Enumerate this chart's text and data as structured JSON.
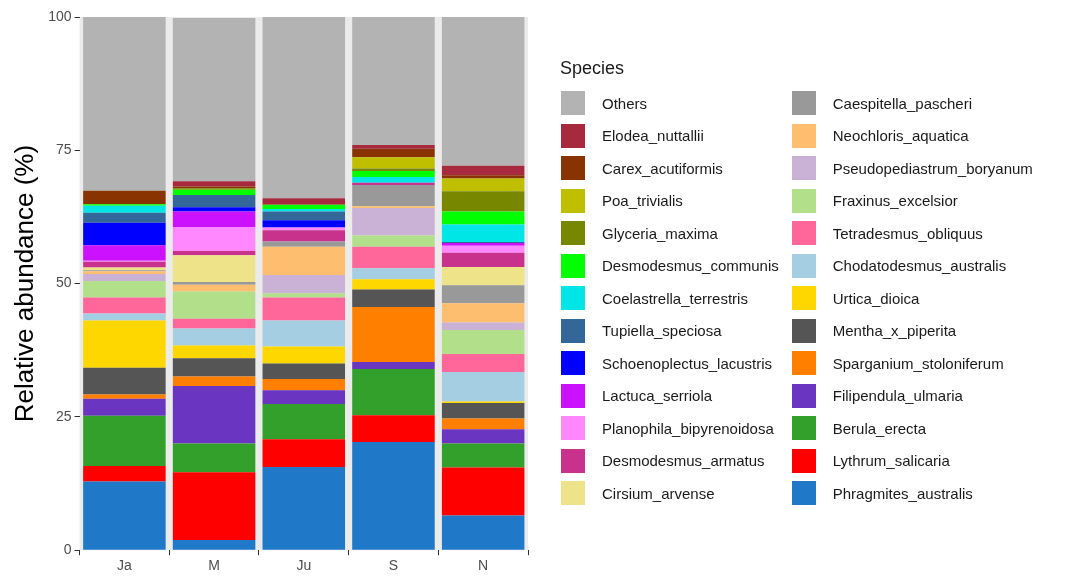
{
  "chart_data": {
    "type": "bar",
    "stacked": true,
    "ylabel": "Relative abundance (%)",
    "legend_title": "Species",
    "legend": "right",
    "grid": false,
    "categories": [
      "Ja",
      "M",
      "Ju",
      "S",
      "N"
    ],
    "ylim": [
      0,
      100
    ],
    "yticks": [
      0,
      25,
      50,
      75,
      100
    ],
    "series": [
      {
        "name": "Phragmites_australis",
        "color": "#1f78c8",
        "values": [
          12.9,
          1.9,
          15.6,
          20.3,
          6.5
        ]
      },
      {
        "name": "Lythrum_salicaria",
        "color": "#ff0000",
        "values": [
          2.9,
          12.7,
          5.2,
          5.0,
          9.0
        ]
      },
      {
        "name": "Berula_erecta",
        "color": "#33a02c",
        "values": [
          9.4,
          5.4,
          6.6,
          8.7,
          4.5
        ]
      },
      {
        "name": "Filipendula_ulmaria",
        "color": "#6a35c0",
        "values": [
          3.2,
          10.8,
          2.6,
          1.3,
          2.7
        ]
      },
      {
        "name": "Sparganium_stoloniferum",
        "color": "#ff8000",
        "values": [
          0.8,
          1.8,
          2.1,
          10.3,
          2.0
        ]
      },
      {
        "name": "Mentha_x_piperita",
        "color": "#555555",
        "values": [
          5.0,
          3.4,
          2.9,
          3.3,
          2.9
        ]
      },
      {
        "name": "Urtica_dioica",
        "color": "#ffd700",
        "values": [
          8.9,
          2.4,
          3.2,
          1.9,
          0.3
        ]
      },
      {
        "name": "Chodatodesmus_australis",
        "color": "#a6cee3",
        "values": [
          1.3,
          3.2,
          4.9,
          2.1,
          5.5
        ]
      },
      {
        "name": "Tetradesmus_obliquus",
        "color": "#ff6699",
        "values": [
          3.0,
          1.8,
          4.3,
          4.0,
          3.4
        ]
      },
      {
        "name": "Fraxinus_excelsior",
        "color": "#b2df8a",
        "values": [
          3.1,
          5.1,
          0.8,
          2.1,
          4.5
        ]
      },
      {
        "name": "Pseudopediastrum_boryanum",
        "color": "#cab2d6",
        "values": [
          1.3,
          null,
          3.4,
          5.2,
          1.4
        ]
      },
      {
        "name": "Neochloris_aquatica",
        "color": "#fdbf6f",
        "values": [
          0.5,
          1.3,
          5.3,
          0.3,
          3.6
        ]
      },
      {
        "name": "Caespitella_pascheri",
        "color": "#999999",
        "values": [
          0.2,
          0.5,
          1.0,
          4.0,
          3.4
        ]
      },
      {
        "name": "Cirsium_arvense",
        "color": "#eee388",
        "values": [
          0.5,
          5.0,
          0,
          0,
          3.4
        ]
      },
      {
        "name": "Desmodesmus_armatus",
        "color": "#c8318c",
        "values": [
          1.1,
          0.8,
          2.1,
          0.4,
          2.7
        ]
      },
      {
        "name": "Planophila_bipyrenoidosa",
        "color": "#ff88ff",
        "values": [
          0.2,
          4.5,
          0.5,
          0,
          1.3
        ]
      },
      {
        "name": "Lactuca_serriola",
        "color": "#cc11ff",
        "values": [
          2.9,
          2.9,
          0,
          0,
          0.5
        ]
      },
      {
        "name": "Schoenoplectus_lacustris",
        "color": "#0000ff",
        "values": [
          4.2,
          0.8,
          1.4,
          0,
          0
        ]
      },
      {
        "name": "Tupiella_speciosa",
        "color": "#336699",
        "values": [
          1.9,
          2.3,
          1.6,
          0,
          0.2
        ]
      },
      {
        "name": "Coelastrella_terrestris",
        "color": "#00e5e5",
        "values": [
          1.3,
          0,
          0.5,
          1.1,
          3.3
        ]
      },
      {
        "name": "Desmodesmus_communis",
        "color": "#00ff00",
        "values": [
          0.3,
          1.0,
          0.8,
          1.1,
          2.4
        ]
      },
      {
        "name": "Glyceria_maxima",
        "color": "#778800",
        "values": [
          0,
          0.3,
          0,
          0.5,
          3.8
        ]
      },
      {
        "name": "Poa_trivialis",
        "color": "#bfbf00",
        "values": [
          0,
          0,
          0,
          2.1,
          2.4
        ]
      },
      {
        "name": "Carex_acutiformis",
        "color": "#883300",
        "values": [
          2.5,
          0.3,
          0,
          1.6,
          0.6
        ]
      },
      {
        "name": "Elodea_nuttallii",
        "color": "#a6293d",
        "values": [
          0,
          1.0,
          1.2,
          0.7,
          1.8
        ]
      },
      {
        "name": "Others",
        "color": "#b3b3b3",
        "values": [
          32.6,
          30.6,
          34.0,
          24.0,
          27.9
        ]
      }
    ]
  }
}
